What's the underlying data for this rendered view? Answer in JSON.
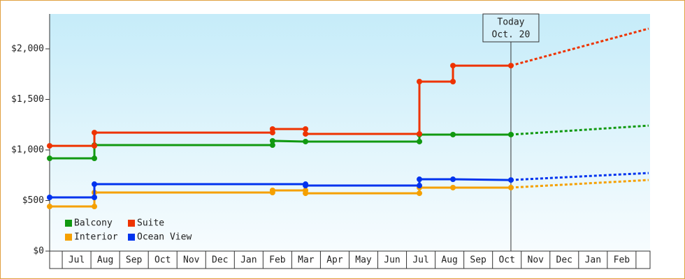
{
  "chart_data": {
    "type": "step-line",
    "categories": [
      "Jul",
      "Aug",
      "Sep",
      "Oct",
      "Nov",
      "Dec",
      "Jan",
      "Feb",
      "Mar",
      "Apr",
      "May",
      "Jun",
      "Jul",
      "Aug",
      "Sep",
      "Oct",
      "Nov",
      "Dec",
      "Jan",
      "Feb"
    ],
    "xlim": [
      -0.44,
      20.49
    ],
    "ylim": [
      0,
      2345
    ],
    "yticks": [
      {
        "value": 0,
        "label": "$0"
      },
      {
        "value": 500,
        "label": "$500"
      },
      {
        "value": 1000,
        "label": "$1,000"
      },
      {
        "value": 1500,
        "label": "$1,500"
      },
      {
        "value": 2000,
        "label": "$2,000"
      }
    ],
    "today_x": 15.64,
    "today_label": [
      "Today",
      "Oct. 20"
    ],
    "forecast_x": [
      15.64,
      20.44
    ],
    "legend": "bottom-left",
    "series": [
      {
        "name": "Balcony",
        "color": "#119911",
        "x": [
          -0.44,
          1.12,
          1.12,
          7.33,
          7.33,
          8.48,
          12.45,
          12.45,
          13.62,
          15.64
        ],
        "values": [
          917,
          917,
          1048,
          1048,
          1090,
          1083,
          1083,
          1152,
          1152,
          1152
        ],
        "forecast": [
          1152,
          1241
        ]
      },
      {
        "name": "Suite",
        "color": "#ee3300",
        "x": [
          -0.44,
          1.12,
          1.12,
          7.33,
          7.33,
          8.48,
          8.48,
          12.45,
          12.45,
          13.62,
          13.62,
          15.64
        ],
        "values": [
          1041,
          1041,
          1172,
          1172,
          1207,
          1207,
          1159,
          1159,
          1676,
          1676,
          1834,
          1834
        ],
        "forecast": [
          1834,
          2200
        ]
      },
      {
        "name": "Interior",
        "color": "#f5a000",
        "x": [
          -0.44,
          1.12,
          1.12,
          7.33,
          7.33,
          8.48,
          8.48,
          12.45,
          12.45,
          13.62,
          15.64
        ],
        "values": [
          441,
          441,
          579,
          579,
          600,
          600,
          572,
          572,
          628,
          628,
          628
        ],
        "forecast": [
          628,
          703
        ]
      },
      {
        "name": "Ocean View",
        "color": "#0033ee",
        "x": [
          -0.44,
          1.12,
          1.12,
          8.48,
          8.48,
          12.45,
          12.45,
          13.62,
          15.64
        ],
        "values": [
          531,
          531,
          662,
          662,
          648,
          648,
          710,
          710,
          703
        ],
        "forecast": [
          703,
          772
        ]
      }
    ]
  }
}
